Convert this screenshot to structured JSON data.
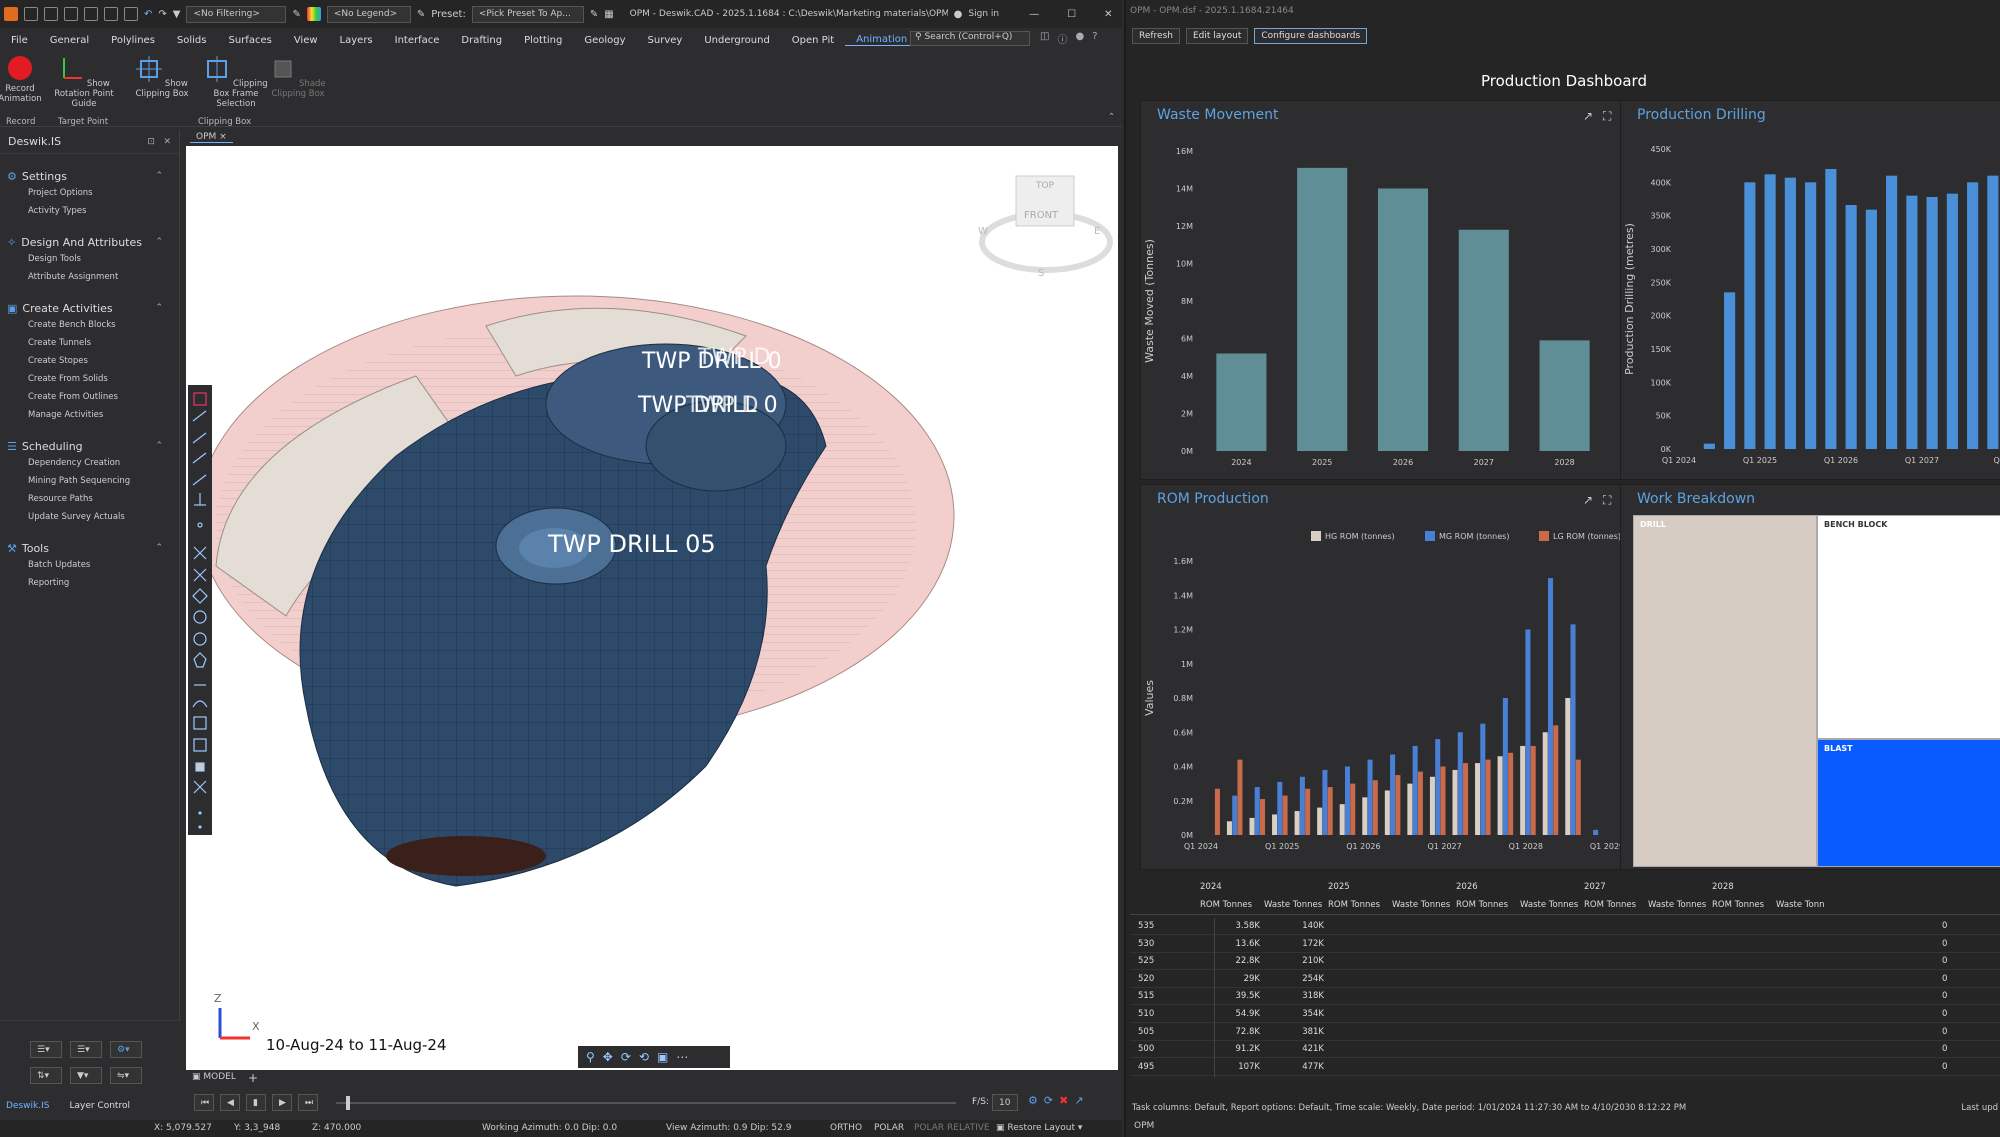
{
  "cad": {
    "title": "OPM - Deswik.CAD - 2025.1.1684 : C:\\Deswik\\Marketing materials\\OPM\\OP...",
    "filter_combo": "<No Filtering>",
    "legend_combo": "<No Legend>",
    "preset_label": "Preset:",
    "preset_combo": "<Pick Preset To Ap...",
    "sign_in": "Sign in",
    "search_placeholder": "Search (Control+Q)",
    "menu": [
      "File",
      "General",
      "Polylines",
      "Solids",
      "Surfaces",
      "View",
      "Layers",
      "Interface",
      "Drafting",
      "Plotting",
      "Geology",
      "Survey",
      "Underground",
      "Open Pit",
      "Animation"
    ],
    "active_menu": "Animation",
    "ribbon": {
      "record_animation": "Record Animation",
      "show_rotation": "Show Rotation Point Guide",
      "show_clipping": "Show Clipping Box",
      "clipping_frame": "Clipping Box Frame Selection",
      "shade_clipping": "Shade Clipping Box",
      "grp_record": "Record",
      "grp_target": "Target Point",
      "grp_clipping": "Clipping Box"
    },
    "panel_title": "Deswik.IS",
    "sections": [
      {
        "title": "Settings",
        "items": [
          "Project Options",
          "Activity Types"
        ]
      },
      {
        "title": "Design And Attributes",
        "items": [
          "Design Tools",
          "Attribute Assignment"
        ]
      },
      {
        "title": "Create Activities",
        "items": [
          "Create Bench Blocks",
          "Create Tunnels",
          "Create Stopes",
          "Create From Solids",
          "Create From Outlines",
          "Manage Activities"
        ]
      },
      {
        "title": "Scheduling",
        "items": [
          "Dependency Creation",
          "Mining Path Sequencing",
          "Resource Paths",
          "Update Survey Actuals"
        ]
      },
      {
        "title": "Tools",
        "items": [
          "Batch Updates",
          "Reporting"
        ]
      }
    ],
    "viewport_tab": "OPM",
    "labels": [
      "TWP DRILL 0",
      "TWP DRILL 0",
      "TWP DRILL 05"
    ],
    "labels_overlap": [
      "TWP D",
      "TWP D"
    ],
    "viewcube": {
      "top": "TOP",
      "front": "FRONT",
      "w": "W",
      "e": "E",
      "s": "S"
    },
    "axis_z": "Z",
    "axis_x": "X",
    "date_range": "10-Aug-24 to 11-Aug-24",
    "model_tab": "MODEL",
    "bottom_tabs": [
      "Deswik.IS",
      "Layer Control"
    ],
    "fps_label": "F/S:",
    "fps_value": "10",
    "status": {
      "x": "X: 5,079.527",
      "y": "Y: 3,3_948",
      "z": "Z: 470.000",
      "working_azimuth": "Working Azimuth: 0.0 Dip: 0.0",
      "view_azimuth": "View Azimuth: 0.9 Dip: 52.9",
      "ortho": "ORTHO",
      "polar": "POLAR",
      "polar_relative": "POLAR RELATIVE",
      "restore_layout": "Restore Layout"
    }
  },
  "dash": {
    "window_title": "OPM - OPM.dsf - 2025.1.1684.21464",
    "buttons": [
      "Refresh",
      "Edit layout",
      "Configure dashboards"
    ],
    "heading": "Production Dashboard",
    "waste": {
      "title": "Waste Movement",
      "ylabel": "Waste Moved (Tonnes)"
    },
    "drilling": {
      "title": "Production Drilling",
      "ylabel": "Production Drilling (metres)"
    },
    "rom": {
      "title": "ROM Production",
      "ylabel": "Values",
      "legend": [
        "HG ROM (tonnes)",
        "MG ROM (tonnes)",
        "LG ROM (tonnes)"
      ]
    },
    "work": {
      "title": "Work Breakdown",
      "cells": [
        "DRILL",
        "BENCH BLOCK",
        "BLAST"
      ]
    },
    "table": {
      "years": [
        "2024",
        "2025",
        "2026",
        "2027",
        "2028"
      ],
      "col_headers": [
        "ROM Tonnes",
        "Waste Tonnes",
        "ROM Tonnes",
        "Waste Tonnes",
        "ROM Tonnes",
        "Waste Tonnes",
        "ROM Tonnes",
        "Waste Tonnes",
        "ROM Tonnes",
        "Waste Tonn"
      ],
      "rows": [
        {
          "bench": "535",
          "rom": "3.58K",
          "waste": "140K",
          "last": "0"
        },
        {
          "bench": "530",
          "rom": "13.6K",
          "waste": "172K",
          "last": "0"
        },
        {
          "bench": "525",
          "rom": "22.8K",
          "waste": "210K",
          "last": "0"
        },
        {
          "bench": "520",
          "rom": "29K",
          "waste": "254K",
          "last": "0"
        },
        {
          "bench": "515",
          "rom": "39.5K",
          "waste": "318K",
          "last": "0"
        },
        {
          "bench": "510",
          "rom": "54.9K",
          "waste": "354K",
          "last": "0"
        },
        {
          "bench": "505",
          "rom": "72.8K",
          "waste": "381K",
          "last": "0"
        },
        {
          "bench": "500",
          "rom": "91.2K",
          "waste": "421K",
          "last": "0"
        },
        {
          "bench": "495",
          "rom": "107K",
          "waste": "477K",
          "last": "0"
        }
      ]
    },
    "status": "Task columns: Default,  Report options: Default,  Time scale: Weekly,  Date period: 1/01/2024 11:27:30 AM to 4/10/2030 8:12:22 PM",
    "status_right": "Last upd",
    "tab": "OPM"
  },
  "chart_data": [
    {
      "type": "bar",
      "title": "Waste Movement",
      "ylabel": "Waste Moved (Tonnes)",
      "xlabel": "",
      "categories": [
        "2024",
        "2025",
        "2026",
        "2027",
        "2028"
      ],
      "values": [
        5200000,
        15100000,
        14000000,
        11800000,
        5900000
      ],
      "ylim": [
        0,
        16000000
      ],
      "yticks": [
        "0M",
        "2M",
        "4M",
        "6M",
        "8M",
        "10M",
        "12M",
        "14M",
        "16M"
      ],
      "color": "#5f8e97"
    },
    {
      "type": "bar",
      "title": "Production Drilling",
      "ylabel": "Production Drilling (metres)",
      "xlabel": "",
      "categories": [
        "Q1 2024",
        "Q2 2024",
        "Q3 2024",
        "Q4 2024",
        "Q1 2025",
        "Q2 2025",
        "Q3 2025",
        "Q4 2025",
        "Q1 2026",
        "Q2 2026",
        "Q3 2026",
        "Q4 2026",
        "Q1 2027",
        "Q2 2027",
        "Q3 2027",
        "Q4 2027"
      ],
      "xticks": [
        "Q1 2024",
        "Q1 2025",
        "Q1 2026",
        "Q1 2027",
        "Q1 2"
      ],
      "values": [
        0,
        8000,
        235000,
        400000,
        412000,
        407000,
        400000,
        420000,
        366000,
        359000,
        410000,
        380000,
        378000,
        383000,
        400000,
        410000
      ],
      "ylim": [
        0,
        450000
      ],
      "yticks": [
        "0K",
        "50K",
        "100K",
        "150K",
        "200K",
        "250K",
        "300K",
        "350K",
        "400K",
        "450K"
      ],
      "color": "#4a90d9"
    },
    {
      "type": "bar",
      "title": "ROM Production",
      "ylabel": "Values",
      "xticks": [
        "Q1 2024",
        "Q1 2025",
        "Q1 2026",
        "Q1 2027",
        "Q1 2028",
        "Q1 2029"
      ],
      "yticks": [
        "0M",
        "0.2M",
        "0.4M",
        "0.6M",
        "0.8M",
        "1M",
        "1.2M",
        "1.4M",
        "1.6M"
      ],
      "ylim": [
        0,
        1600000
      ],
      "series": [
        {
          "name": "HG ROM (tonnes)",
          "color": "#d9cfc4",
          "values": [
            0,
            80000,
            100000,
            120000,
            140000,
            160000,
            180000,
            220000,
            260000,
            300000,
            340000,
            380000,
            420000,
            460000,
            520000,
            600000,
            800000,
            0
          ]
        },
        {
          "name": "MG ROM (tonnes)",
          "color": "#4a7fd6",
          "values": [
            0,
            230000,
            280000,
            310000,
            340000,
            380000,
            400000,
            440000,
            470000,
            520000,
            560000,
            600000,
            650000,
            800000,
            1200000,
            1500000,
            1230000,
            30000
          ]
        },
        {
          "name": "LG ROM (tonnes)",
          "color": "#c96a4a",
          "values": [
            270000,
            440000,
            210000,
            230000,
            270000,
            280000,
            300000,
            320000,
            350000,
            370000,
            400000,
            420000,
            440000,
            480000,
            520000,
            640000,
            440000,
            0
          ]
        }
      ]
    }
  ]
}
